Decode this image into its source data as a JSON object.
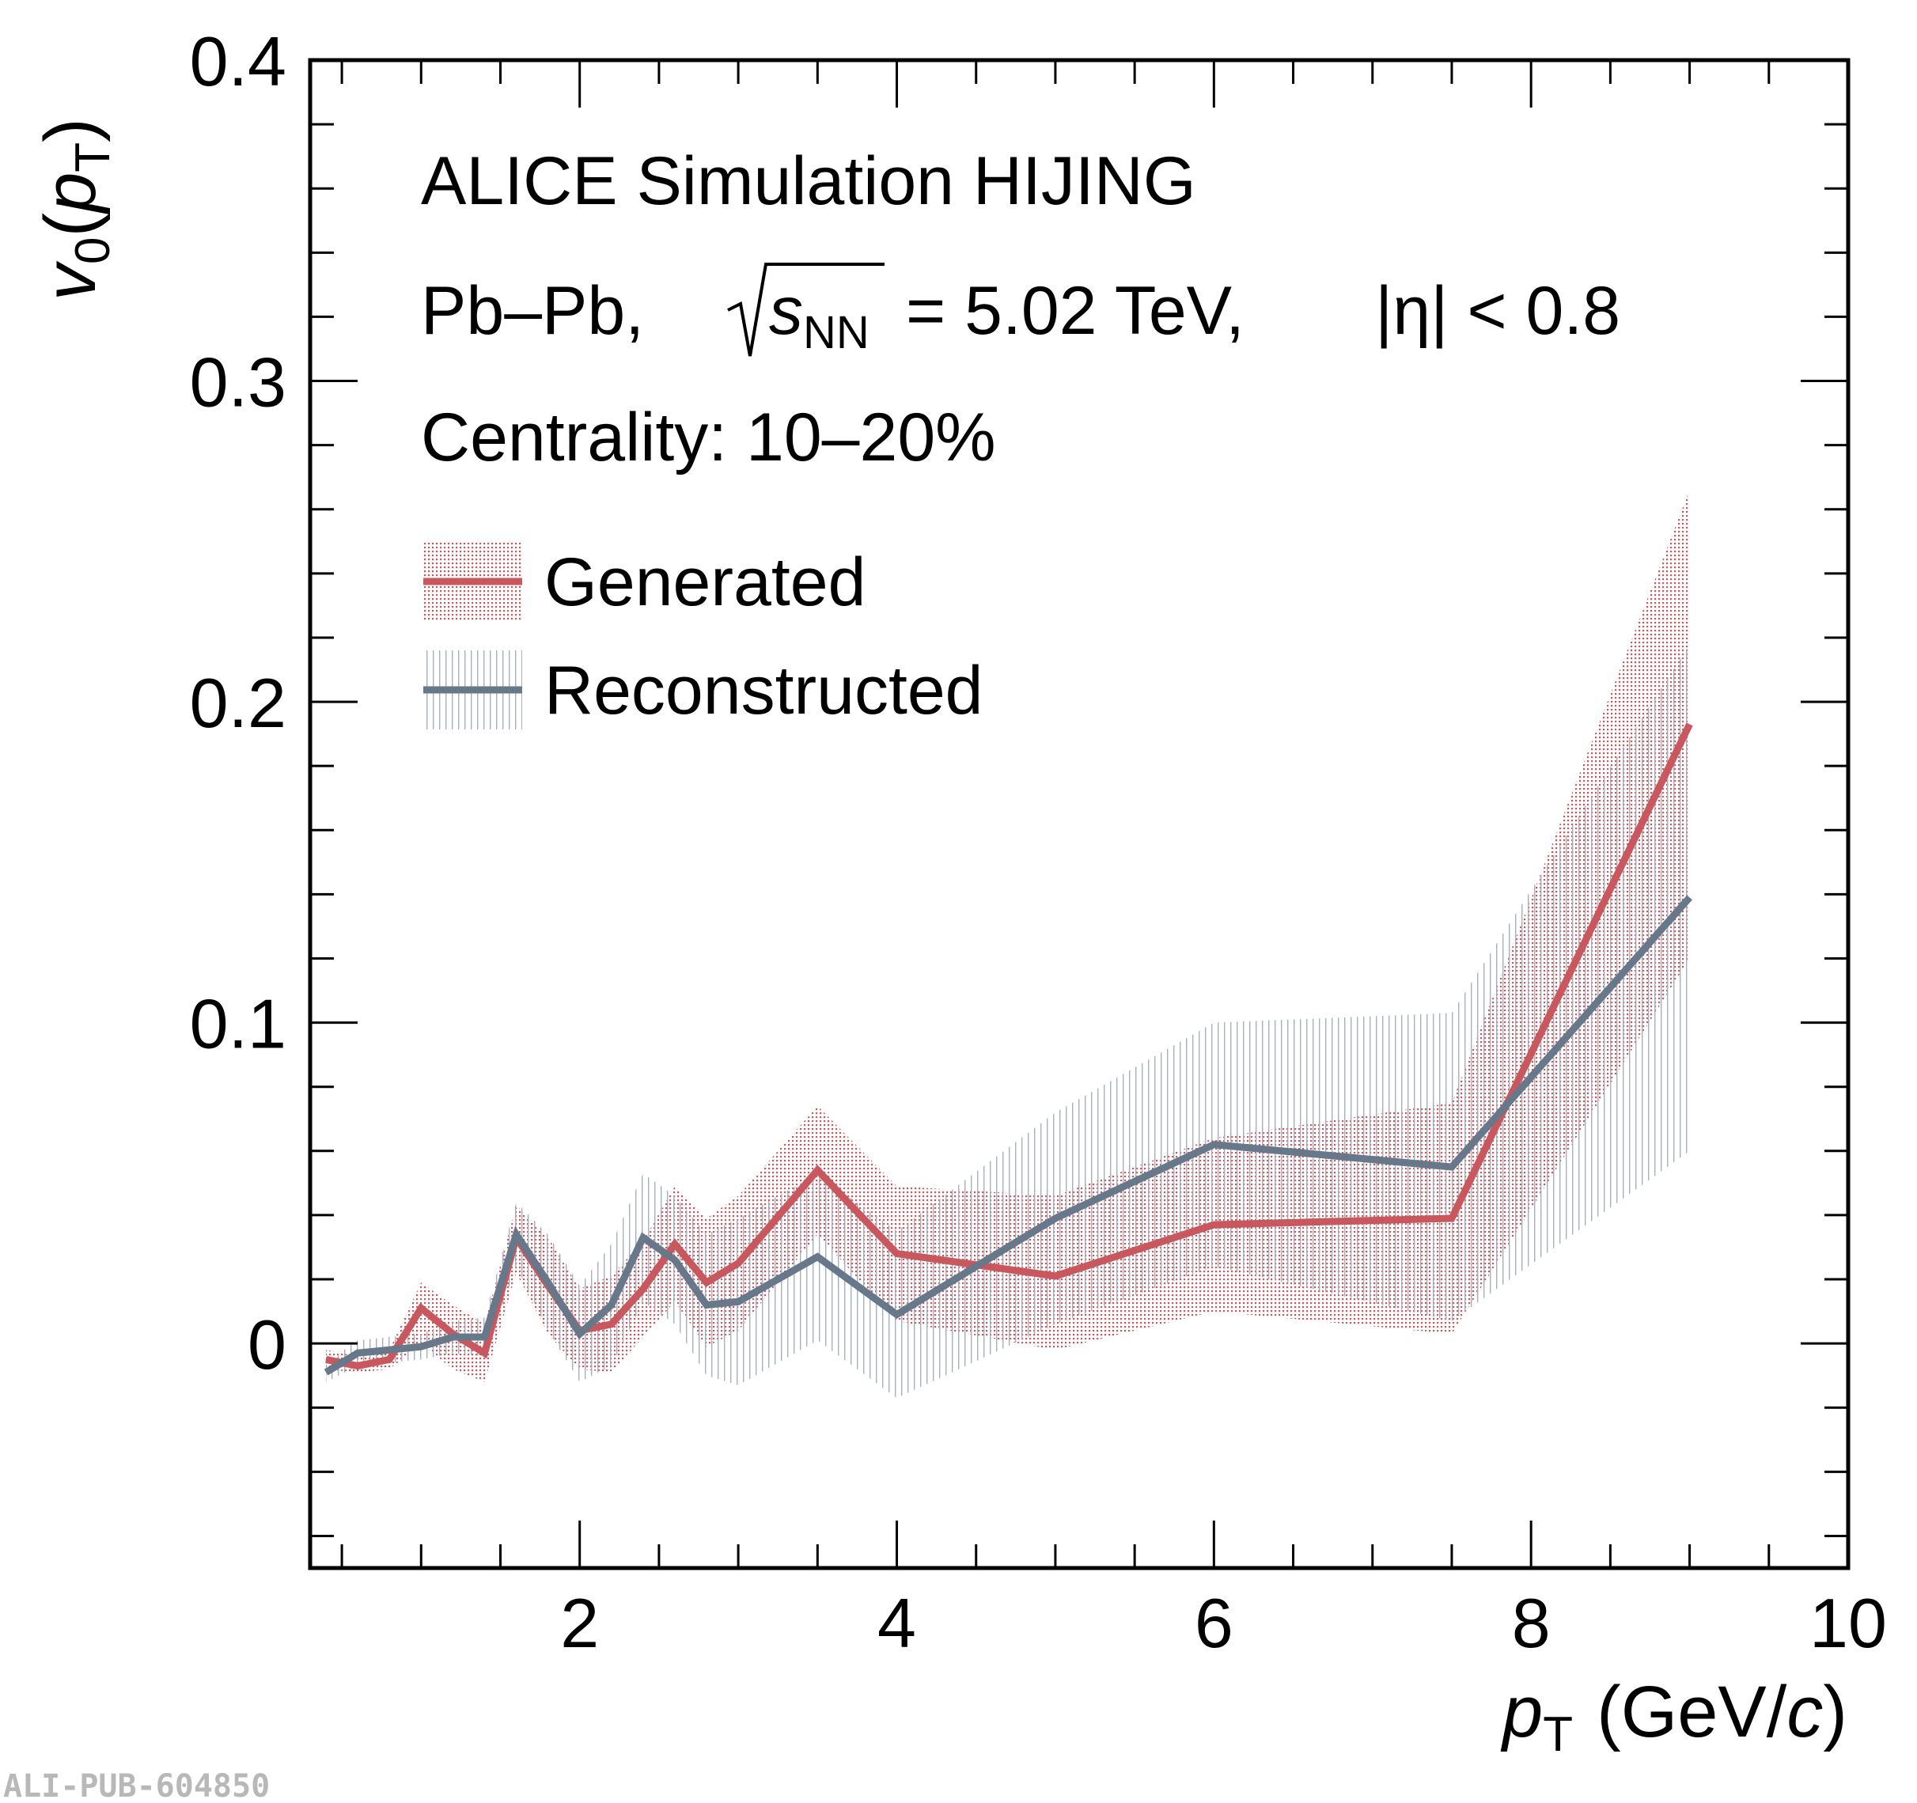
{
  "chart_data": {
    "type": "line",
    "title": "",
    "annotations": {
      "experiment": "ALICE Simulation HIJING",
      "system_prefix": "Pb–Pb,",
      "sqrt_s_symbol": "s",
      "sqrt_s_subscript": "NN",
      "energy_text": "= 5.02 TeV,",
      "eta_text": "|η| < 0.8",
      "centrality": "Centrality: 10–20%"
    },
    "ylabel": {
      "symbol": "v",
      "subscript": "0",
      "paren_open": "(",
      "arg": "p",
      "arg_subscript": "T",
      "paren_close": ")"
    },
    "xlabel": {
      "symbol": "p",
      "subscript": "T",
      "unit_open": "(GeV/",
      "unit_c": "c",
      "unit_close": ")"
    },
    "xlim": [
      0.3,
      10
    ],
    "ylim": [
      -0.07,
      0.4
    ],
    "xticks": [
      2,
      4,
      6,
      8,
      10
    ],
    "yticks": [
      0,
      0.1,
      0.2,
      0.3,
      0.4
    ],
    "legend_position": "top-left",
    "grid": false,
    "series": [
      {
        "name": "Generated",
        "color": "#c8575e",
        "band_style": "dotted",
        "x": [
          0.4,
          0.6,
          0.8,
          1.0,
          1.2,
          1.4,
          1.6,
          1.8,
          2.0,
          2.2,
          2.4,
          2.6,
          2.8,
          3.0,
          3.5,
          4.0,
          5.0,
          6.0,
          7.5,
          9.0
        ],
        "y": [
          -0.005,
          -0.007,
          -0.005,
          0.011,
          0.003,
          -0.003,
          0.033,
          0.018,
          0.004,
          0.006,
          0.017,
          0.031,
          0.019,
          0.025,
          0.054,
          0.028,
          0.021,
          0.037,
          0.039,
          0.193
        ],
        "band_low": [
          -0.008,
          -0.009,
          -0.008,
          0.0,
          -0.008,
          -0.012,
          0.022,
          0.003,
          -0.008,
          -0.009,
          0.002,
          0.013,
          -0.001,
          0.004,
          0.034,
          0.007,
          -0.002,
          0.01,
          0.003,
          0.12
        ],
        "band_high": [
          -0.002,
          -0.004,
          -0.002,
          0.019,
          0.012,
          0.006,
          0.043,
          0.033,
          0.017,
          0.021,
          0.032,
          0.049,
          0.039,
          0.046,
          0.074,
          0.049,
          0.046,
          0.064,
          0.075,
          0.266
        ]
      },
      {
        "name": "Reconstructed",
        "color": "#66788a",
        "band_style": "vertical-hatch",
        "x": [
          0.4,
          0.6,
          0.8,
          1.0,
          1.2,
          1.4,
          1.6,
          1.8,
          2.0,
          2.2,
          2.4,
          2.6,
          2.8,
          3.0,
          3.5,
          4.0,
          5.0,
          6.0,
          7.5,
          9.0
        ],
        "y": [
          -0.009,
          -0.003,
          -0.002,
          -0.001,
          0.002,
          0.002,
          0.034,
          0.019,
          0.003,
          0.012,
          0.033,
          0.026,
          0.012,
          0.013,
          0.027,
          0.009,
          0.039,
          0.062,
          0.055,
          0.139
        ],
        "band_low": [
          -0.012,
          -0.007,
          -0.006,
          -0.005,
          -0.003,
          -0.004,
          0.024,
          0.004,
          -0.012,
          -0.007,
          0.013,
          0.006,
          -0.01,
          -0.013,
          0.001,
          -0.017,
          0.006,
          0.024,
          0.007,
          0.06
        ],
        "band_high": [
          -0.006,
          0.001,
          0.002,
          0.003,
          0.007,
          0.008,
          0.044,
          0.034,
          0.018,
          0.031,
          0.053,
          0.046,
          0.034,
          0.039,
          0.053,
          0.035,
          0.072,
          0.1,
          0.103,
          0.218
        ]
      }
    ]
  },
  "figure_id": "ALI-PUB-604850"
}
